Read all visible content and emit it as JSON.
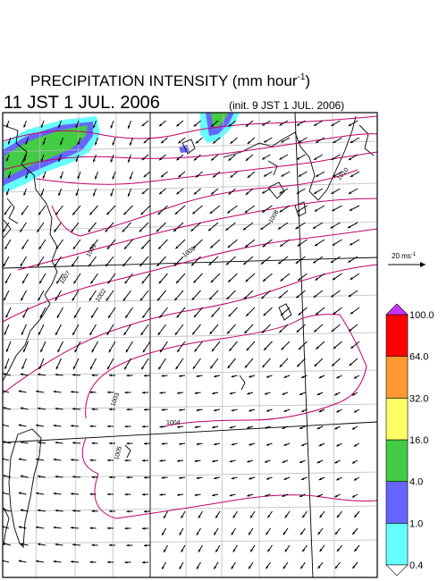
{
  "title": {
    "main": "PRECIPITATION INTENSITY (mm hour",
    "unit_exp": "-1",
    "close": ")"
  },
  "valid_time": "11 JST 1 JUL. 2006",
  "init_time": "(init. 9 JST 1 JUL. 2006)",
  "vector_scale": {
    "label": "20 ms",
    "exp": "-1"
  },
  "colorbar": {
    "levels": [
      "0.4",
      "1.0",
      "4.0",
      "16.0",
      "32.0",
      "64.0",
      "100.0"
    ],
    "colors": [
      "#66ffff",
      "#6666ff",
      "#44cc44",
      "#ffff66",
      "#ff9933",
      "#ff0000",
      "#cc33ff"
    ]
  },
  "isobars": [
    "1002",
    "1003",
    "1004",
    "1005",
    "1006",
    "1007",
    "1008",
    "1009",
    "1010"
  ],
  "colors": {
    "isobar": "#c0006a",
    "coast": "#000000",
    "grid": "#bbbbbb",
    "wind": "#000000"
  }
}
